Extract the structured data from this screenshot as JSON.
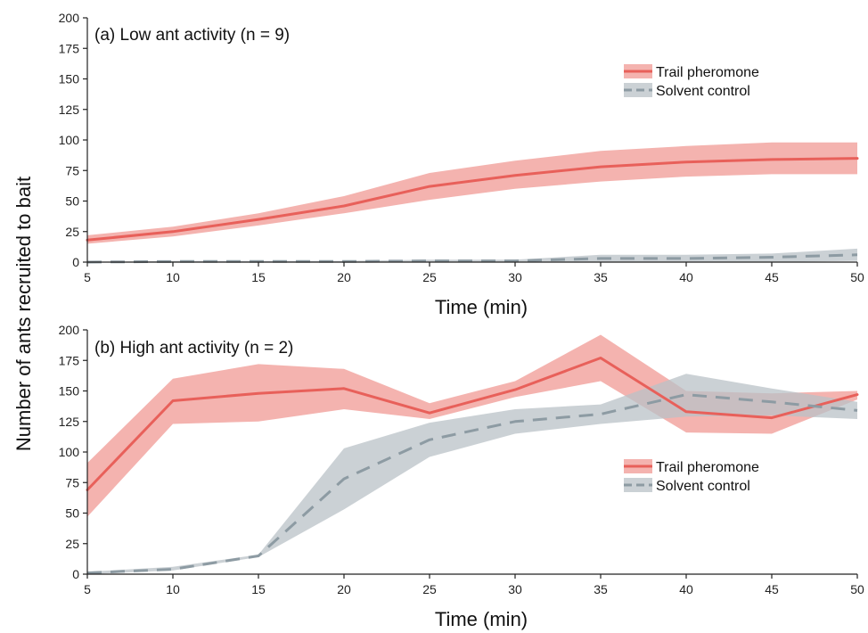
{
  "figure": {
    "ylabel": "Number of ants recruited to bait"
  },
  "chart_data": [
    {
      "type": "line",
      "title": "(a) Low ant activity (n = 9)",
      "xlabel": "Time (min)",
      "ylabel": "Number of ants recruited to bait",
      "x": [
        5,
        10,
        15,
        20,
        25,
        30,
        35,
        40,
        45,
        50
      ],
      "xlim": [
        5,
        50
      ],
      "ylim": [
        0,
        200
      ],
      "x_ticks": [
        5,
        10,
        15,
        20,
        25,
        30,
        35,
        40,
        45,
        50
      ],
      "y_ticks": [
        0,
        25,
        50,
        75,
        100,
        125,
        150,
        175,
        200
      ],
      "grid": false,
      "legend_position": "top-right",
      "series": [
        {
          "name": "Trail pheromone",
          "color": "#e8605a",
          "band_color": "#f09a94",
          "line_style": "solid",
          "values": [
            18,
            25,
            35,
            46,
            62,
            71,
            78,
            82,
            84,
            85
          ],
          "lower": [
            15,
            21,
            30,
            40,
            51,
            60,
            66,
            70,
            72,
            72
          ],
          "upper": [
            22,
            29,
            40,
            54,
            73,
            83,
            91,
            95,
            98,
            98
          ]
        },
        {
          "name": "Solvent control",
          "color": "#8d9ba3",
          "band_color": "#b9c2c7",
          "line_style": "dashed",
          "values": [
            0,
            0.5,
            0.5,
            0.5,
            1,
            1,
            3,
            3,
            4,
            6
          ],
          "lower": [
            0,
            0,
            0,
            0,
            0,
            0,
            0,
            0,
            0,
            1
          ],
          "upper": [
            0,
            1,
            1,
            1,
            2,
            2,
            6,
            6,
            7,
            11
          ]
        }
      ]
    },
    {
      "type": "line",
      "title": "(b) High ant activity (n = 2)",
      "xlabel": "Time (min)",
      "ylabel": "Number of ants recruited to bait",
      "x": [
        5,
        10,
        15,
        20,
        25,
        30,
        35,
        40,
        45,
        50
      ],
      "xlim": [
        5,
        50
      ],
      "ylim": [
        0,
        200
      ],
      "x_ticks": [
        5,
        10,
        15,
        20,
        25,
        30,
        35,
        40,
        45,
        50
      ],
      "y_ticks": [
        0,
        25,
        50,
        75,
        100,
        125,
        150,
        175,
        200
      ],
      "grid": false,
      "legend_position": "bottom-right",
      "series": [
        {
          "name": "Trail pheromone",
          "color": "#e8605a",
          "band_color": "#f09a94",
          "line_style": "solid",
          "values": [
            69,
            142,
            148,
            152,
            132,
            151,
            177,
            133,
            128,
            147
          ],
          "lower": [
            47,
            123,
            125,
            135,
            127,
            145,
            158,
            116,
            115,
            143
          ],
          "upper": [
            91,
            160,
            172,
            168,
            140,
            158,
            196,
            150,
            148,
            150
          ]
        },
        {
          "name": "Solvent control",
          "color": "#8d9ba3",
          "band_color": "#b9c2c7",
          "line_style": "dashed",
          "values": [
            1,
            4,
            15,
            78,
            110,
            125,
            131,
            147,
            141,
            134
          ],
          "lower": [
            0,
            3,
            14,
            53,
            96,
            115,
            123,
            129,
            130,
            127
          ],
          "upper": [
            2,
            6,
            16,
            103,
            124,
            135,
            139,
            164,
            152,
            141
          ]
        }
      ]
    }
  ]
}
